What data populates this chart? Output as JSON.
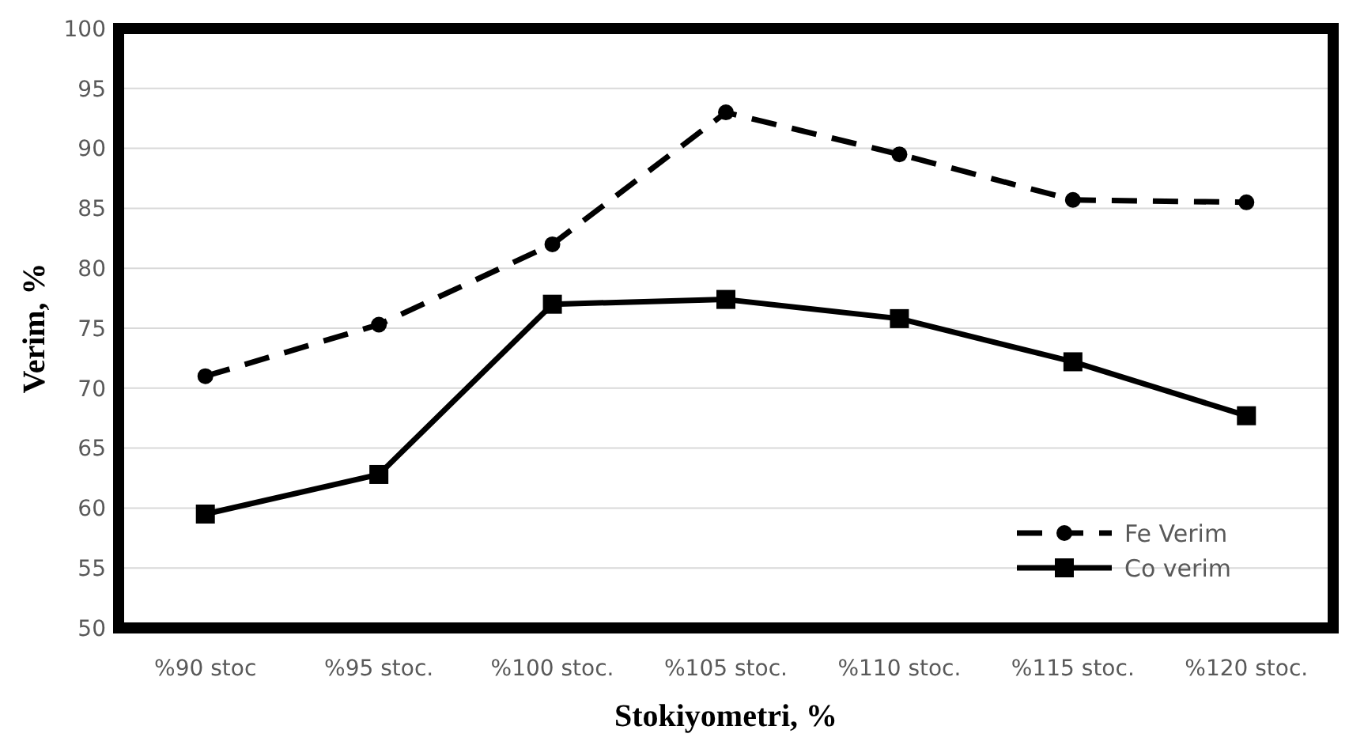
{
  "chart_data": {
    "type": "line",
    "xlabel": "Stokiyometri, %",
    "ylabel": "Verim, %",
    "categories": [
      "%90 stoc",
      "%95 stoc.",
      "%100 stoc.",
      "%105 stoc.",
      "%110 stoc.",
      "%115 stoc.",
      "%120 stoc."
    ],
    "series": [
      {
        "name": "Fe Verim",
        "color": "#000000",
        "values": [
          71,
          75.3,
          82,
          93,
          89.5,
          85.7,
          85.5
        ],
        "marker": "circle",
        "line_style": "dashed"
      },
      {
        "name": "Co verim",
        "color": "#000000",
        "values": [
          59.5,
          62.8,
          77,
          77.4,
          75.8,
          72.2,
          67.7
        ],
        "marker": "square",
        "line_style": "solid"
      }
    ],
    "ylim": [
      50,
      100
    ],
    "yticks": [
      50,
      55,
      60,
      65,
      70,
      75,
      80,
      85,
      90,
      95,
      100
    ],
    "grid": "y",
    "legend": "bottom right"
  }
}
